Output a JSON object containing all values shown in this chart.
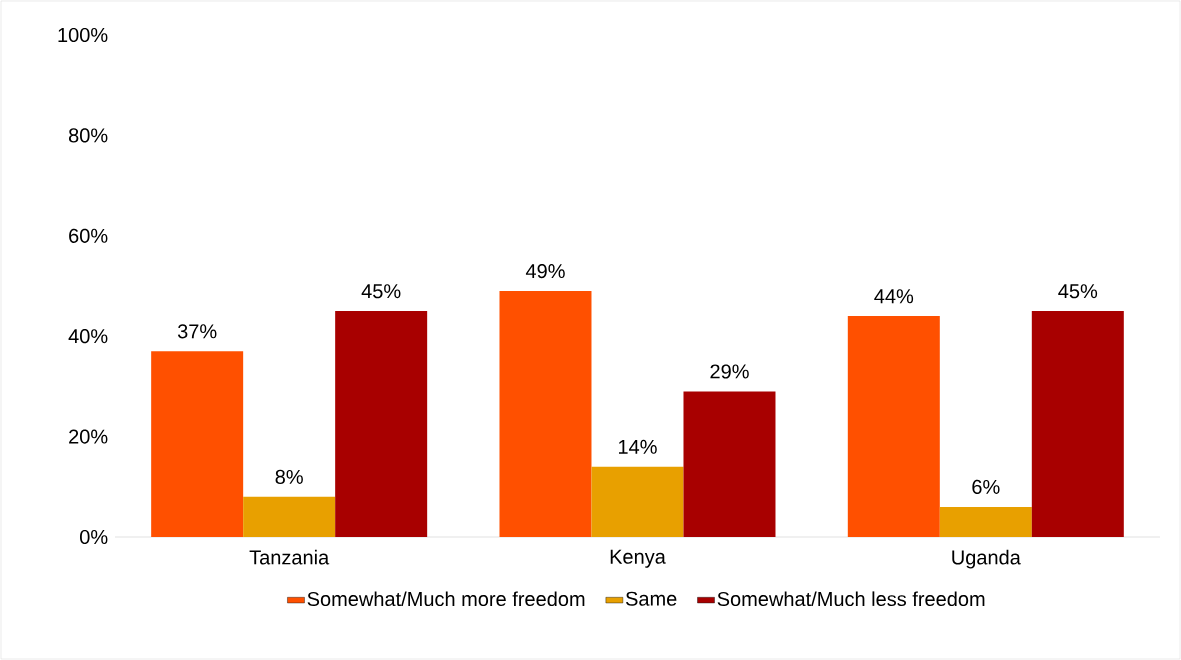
{
  "chart_data": {
    "type": "bar",
    "categories": [
      "Tanzania",
      "Kenya",
      "Uganda"
    ],
    "series": [
      {
        "name": "Somewhat/Much more freedom",
        "color": "#ff5000",
        "values": [
          37,
          49,
          44
        ],
        "value_labels": [
          "37%",
          "49%",
          "44%"
        ]
      },
      {
        "name": "Same",
        "color": "#e8a000",
        "values": [
          8,
          14,
          6
        ],
        "value_labels": [
          "8%",
          "14%",
          "6%"
        ]
      },
      {
        "name": "Somewhat/Much less freedom",
        "color": "#a80000",
        "values": [
          45,
          29,
          45
        ],
        "value_labels": [
          "45%",
          "29%",
          "45%"
        ]
      }
    ],
    "ylim": [
      0,
      100
    ],
    "yticks": [
      {
        "value": 0,
        "label": "0%"
      },
      {
        "value": 20,
        "label": "20%"
      },
      {
        "value": 40,
        "label": "40%"
      },
      {
        "value": 60,
        "label": "60%"
      },
      {
        "value": 80,
        "label": "80%"
      },
      {
        "value": 100,
        "label": "100%"
      }
    ],
    "grid": false,
    "legend": "bottom"
  }
}
